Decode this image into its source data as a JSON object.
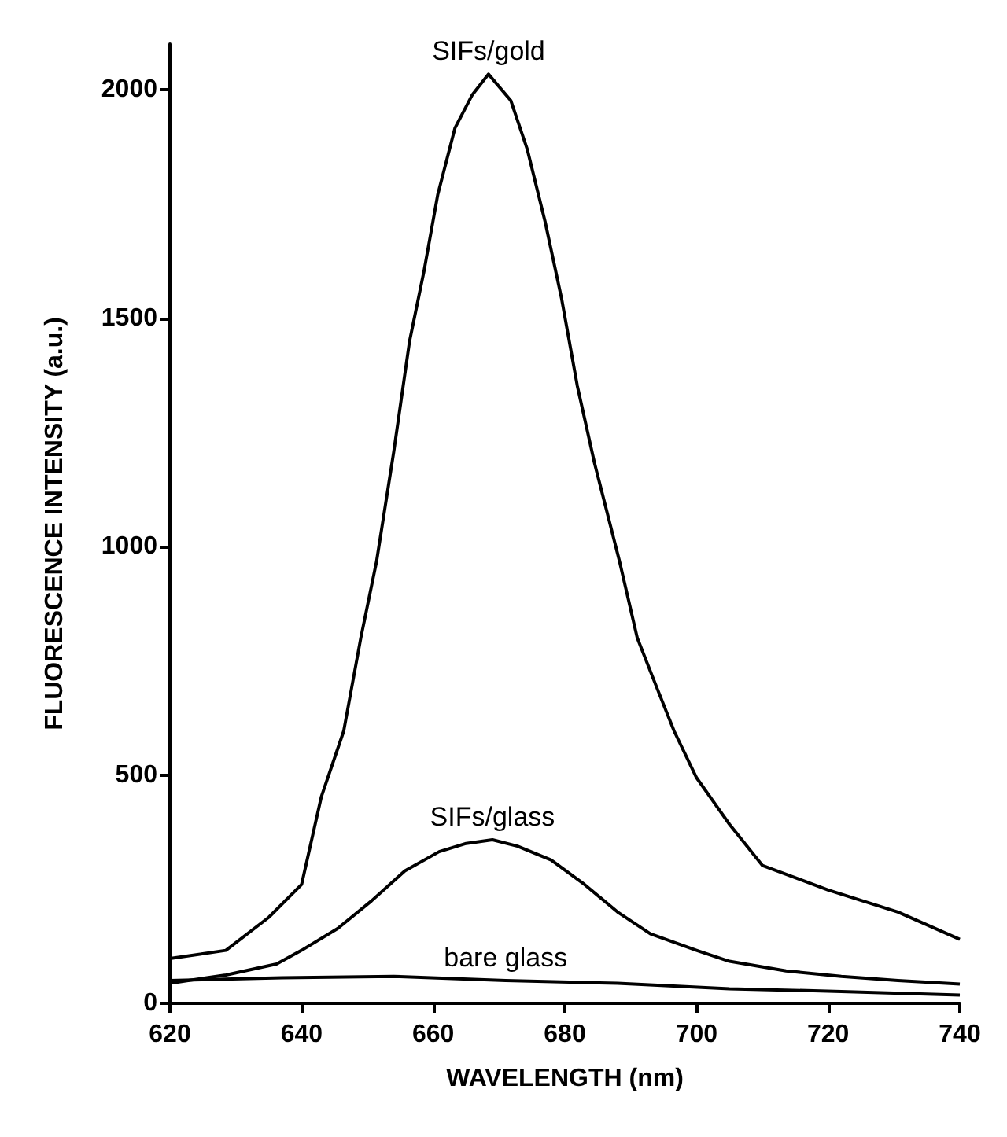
{
  "chart_data": {
    "type": "line",
    "xlabel": "WAVELENGTH (nm)",
    "ylabel": "FLUORESCENCE INTENSITY (a.u.)",
    "xlim": [
      620,
      740
    ],
    "xticks": [
      620,
      640,
      660,
      680,
      700,
      720,
      740
    ],
    "ylim": [
      0,
      2100
    ],
    "yticks": [
      0,
      500,
      1000,
      1500,
      2000
    ],
    "grid": false,
    "legend": false,
    "marker": "none",
    "line_style": "solid",
    "series": [
      {
        "name": "SIFs/gold",
        "color": "#000000",
        "x": [
          620,
          628.5,
          635,
          640,
          643,
          646.4,
          649,
          651.4,
          654,
          656.4,
          658.6,
          660.7,
          663.3,
          665.9,
          668.4,
          671.8,
          674.3,
          677,
          679.5,
          681.9,
          684.5,
          688.3,
          691,
          694,
          696.6,
          700,
          705,
          710,
          720,
          730.6,
          740
        ],
        "values": [
          98,
          116,
          188,
          260,
          452,
          596,
          800,
          968,
          1207,
          1449,
          1603,
          1771,
          1916,
          1988,
          2034,
          1976,
          1869,
          1711,
          1543,
          1351,
          1183,
          968,
          800,
          690,
          596,
          494,
          392,
          302,
          248,
          200,
          140
        ]
      },
      {
        "name": "SIFs/glass",
        "color": "#000000",
        "x": [
          620,
          628.5,
          636.2,
          640,
          645.5,
          650.6,
          655.7,
          660.9,
          665,
          669,
          672.8,
          677.9,
          683,
          688,
          693,
          700,
          705,
          713.6,
          722,
          730.6,
          740
        ],
        "values": [
          44,
          62,
          86,
          116,
          164,
          224,
          290,
          332,
          350,
          358,
          344,
          314,
          260,
          200,
          152,
          116,
          92,
          71,
          59,
          50,
          42
        ]
      },
      {
        "name": "bare glass",
        "color": "#000000",
        "x": [
          620,
          637,
          654,
          671,
          688,
          705,
          722,
          740
        ],
        "values": [
          50,
          56,
          59,
          50,
          44,
          32,
          26,
          18
        ]
      }
    ]
  }
}
